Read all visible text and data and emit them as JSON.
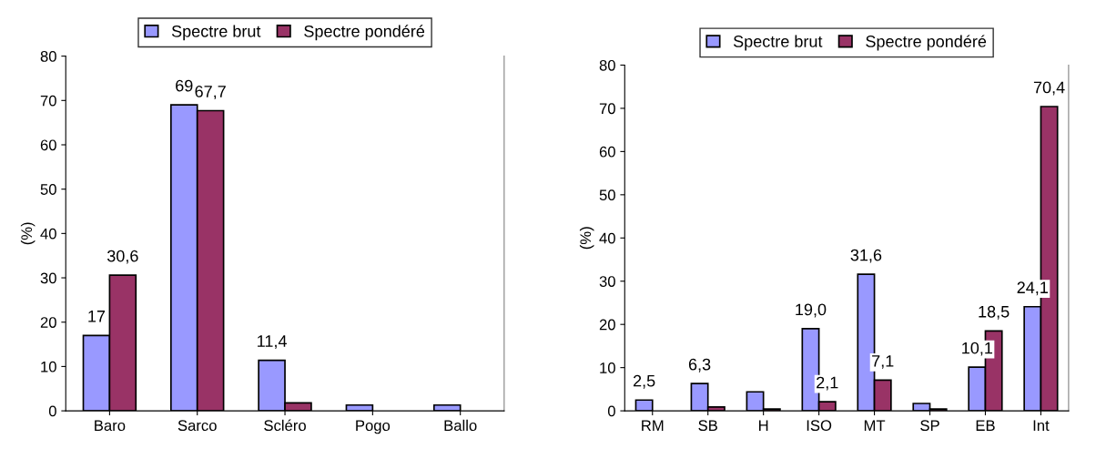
{
  "chart_data": [
    {
      "type": "bar",
      "ylabel": "(%)",
      "categories": [
        "Baro",
        "Sarco",
        "Scléro",
        "Pogo",
        "Ballo"
      ],
      "ylim": [
        0,
        80
      ],
      "yticks": [
        0,
        10,
        20,
        30,
        40,
        50,
        60,
        70,
        80
      ],
      "grid": false,
      "legend": "top",
      "series": [
        {
          "name": "Spectre brut",
          "color": "#9999ff",
          "values": [
            17,
            69,
            11.4,
            1.3,
            1.3
          ],
          "value_labels": [
            "17",
            "69",
            "11,4",
            null,
            null
          ]
        },
        {
          "name": "Spectre pondéré",
          "color": "#993366",
          "values": [
            30.6,
            67.7,
            1.8,
            null,
            null
          ],
          "value_labels": [
            "30,6",
            "67,7",
            null,
            null,
            null
          ]
        }
      ]
    },
    {
      "type": "bar",
      "ylabel": "(%)",
      "categories": [
        "RM",
        "SB",
        "H",
        "ISO",
        "MT",
        "SP",
        "EB",
        "Int"
      ],
      "ylim": [
        0,
        80
      ],
      "yticks": [
        0,
        10,
        20,
        30,
        40,
        50,
        60,
        70,
        80
      ],
      "grid": false,
      "legend": "top",
      "series": [
        {
          "name": "Spectre brut",
          "color": "#9999ff",
          "values": [
            2.5,
            6.3,
            4.4,
            19.0,
            31.6,
            1.7,
            10.1,
            24.1
          ],
          "value_labels": [
            "2,5",
            "6,3",
            null,
            "19,0",
            "31,6",
            null,
            "10,1",
            "24,1"
          ]
        },
        {
          "name": "Spectre pondéré",
          "color": "#993366",
          "values": [
            null,
            0.9,
            0.4,
            2.1,
            7.1,
            0.4,
            18.5,
            70.4
          ],
          "value_labels": [
            null,
            null,
            null,
            "2,1",
            "7,1",
            null,
            "18,5",
            "70,4"
          ]
        }
      ]
    }
  ]
}
